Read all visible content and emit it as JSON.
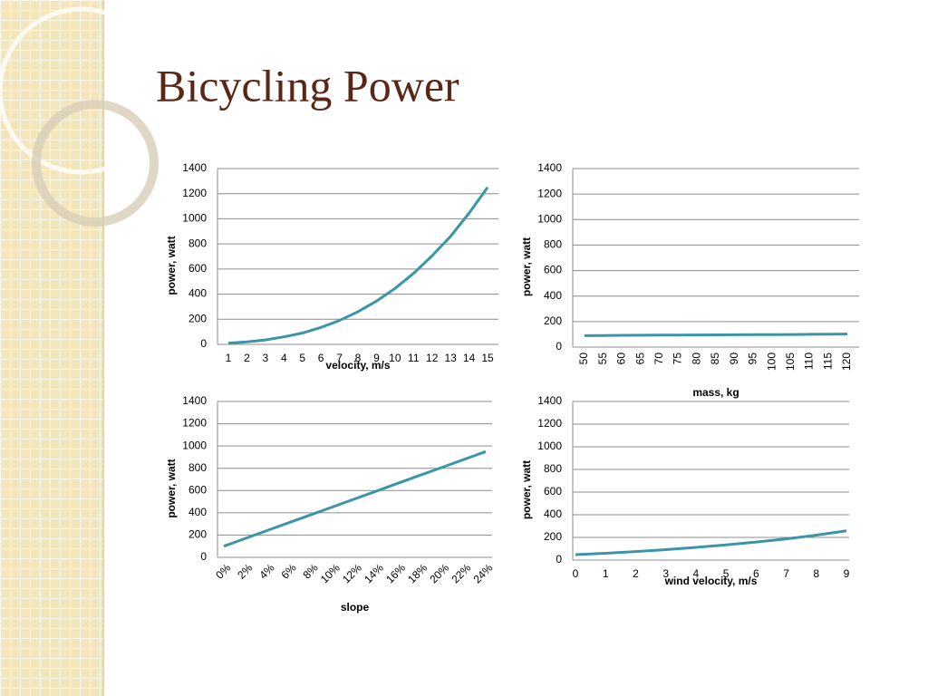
{
  "title": "Bicycling Power",
  "chart_data": [
    {
      "type": "line",
      "xlabel": "velocity, m/s",
      "ylabel": "power, watt",
      "categories": [
        "1",
        "2",
        "3",
        "4",
        "5",
        "6",
        "7",
        "8",
        "9",
        "10",
        "11",
        "12",
        "13",
        "14",
        "15"
      ],
      "values": [
        10,
        20,
        35,
        60,
        90,
        135,
        190,
        260,
        345,
        445,
        565,
        705,
        860,
        1045,
        1250
      ],
      "color": "#3b95a8",
      "ylim": [
        0,
        1400
      ],
      "yticks": [
        0,
        200,
        400,
        600,
        800,
        1000,
        1200,
        1400
      ],
      "grid": true
    },
    {
      "type": "line",
      "xlabel": "mass, kg",
      "ylabel": "power, watt",
      "categories": [
        "50",
        "55",
        "60",
        "65",
        "70",
        "75",
        "80",
        "85",
        "90",
        "95",
        "100",
        "105",
        "110",
        "115",
        "120"
      ],
      "values": [
        90,
        91,
        92,
        93,
        94,
        94,
        95,
        96,
        97,
        98,
        98,
        99,
        100,
        101,
        102
      ],
      "color": "#3b95a8",
      "ylim": [
        0,
        1400
      ],
      "yticks": [
        0,
        200,
        400,
        600,
        800,
        1000,
        1200,
        1400
      ],
      "grid": true
    },
    {
      "type": "line",
      "xlabel": "slope",
      "ylabel": "power, watt",
      "categories": [
        "0%",
        "2%",
        "4%",
        "6%",
        "8%",
        "10%",
        "12%",
        "14%",
        "16%",
        "18%",
        "20%",
        "22%",
        "24%"
      ],
      "values": [
        100,
        171,
        242,
        313,
        383,
        454,
        525,
        596,
        667,
        738,
        808,
        879,
        950
      ],
      "color": "#3b95a8",
      "ylim": [
        0,
        1400
      ],
      "yticks": [
        0,
        200,
        400,
        600,
        800,
        1000,
        1200,
        1400
      ],
      "grid": true
    },
    {
      "type": "line",
      "xlabel": "wind velocity, m/s",
      "ylabel": "power, watt",
      "categories": [
        "0",
        "1",
        "2",
        "3",
        "4",
        "5",
        "6",
        "7",
        "8",
        "9"
      ],
      "values": [
        48,
        60,
        75,
        92,
        112,
        134,
        159,
        187,
        220,
        258
      ],
      "color": "#3b95a8",
      "ylim": [
        0,
        1400
      ],
      "yticks": [
        0,
        200,
        400,
        600,
        800,
        1000,
        1200,
        1400
      ],
      "grid": true
    }
  ]
}
